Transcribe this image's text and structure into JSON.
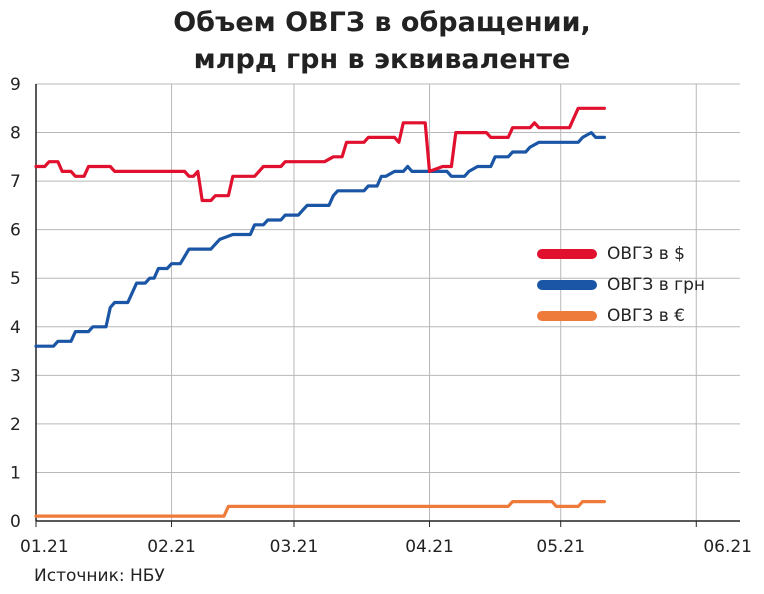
{
  "title_line1": "Объем ОВГЗ в обращении,",
  "title_line2": "млрд грн в эквиваленте",
  "source": "Источник: НБУ",
  "chart_data": {
    "type": "line",
    "ylim": [
      0,
      9
    ],
    "yticks": [
      "0",
      "1",
      "2",
      "3",
      "4",
      "5",
      "6",
      "7",
      "8",
      "9"
    ],
    "x_range": [
      "2021-01-01",
      "2021-06-11"
    ],
    "xticks": [
      {
        "label": "01.21",
        "date": "2021-01-01"
      },
      {
        "label": "02.21",
        "date": "2021-02-01"
      },
      {
        "label": "03.21",
        "date": "2021-03-01"
      },
      {
        "label": "04.21",
        "date": "2021-04-01"
      },
      {
        "label": "05.21",
        "date": "2021-05-01"
      },
      {
        "label": "06.21",
        "date": "2021-06-01"
      }
    ],
    "grid": true,
    "legend_position": "right",
    "series": [
      {
        "name": "ОВГЗ в $",
        "color": "#E0102E",
        "points": [
          [
            "2021-01-01",
            7.3
          ],
          [
            "2021-01-03",
            7.3
          ],
          [
            "2021-01-04",
            7.4
          ],
          [
            "2021-01-06",
            7.4
          ],
          [
            "2021-01-07",
            7.2
          ],
          [
            "2021-01-09",
            7.2
          ],
          [
            "2021-01-10",
            7.1
          ],
          [
            "2021-01-12",
            7.1
          ],
          [
            "2021-01-13",
            7.3
          ],
          [
            "2021-01-18",
            7.3
          ],
          [
            "2021-01-19",
            7.2
          ],
          [
            "2021-02-04",
            7.2
          ],
          [
            "2021-02-05",
            7.1
          ],
          [
            "2021-02-06",
            7.1
          ],
          [
            "2021-02-07",
            7.2
          ],
          [
            "2021-02-08",
            6.6
          ],
          [
            "2021-02-10",
            6.6
          ],
          [
            "2021-02-11",
            6.7
          ],
          [
            "2021-02-14",
            6.7
          ],
          [
            "2021-02-15",
            7.1
          ],
          [
            "2021-02-20",
            7.1
          ],
          [
            "2021-02-22",
            7.3
          ],
          [
            "2021-02-26",
            7.3
          ],
          [
            "2021-02-27",
            7.4
          ],
          [
            "2021-03-08",
            7.4
          ],
          [
            "2021-03-10",
            7.5
          ],
          [
            "2021-03-12",
            7.5
          ],
          [
            "2021-03-13",
            7.8
          ],
          [
            "2021-03-17",
            7.8
          ],
          [
            "2021-03-18",
            7.9
          ],
          [
            "2021-03-24",
            7.9
          ],
          [
            "2021-03-25",
            7.8
          ],
          [
            "2021-03-26",
            8.2
          ],
          [
            "2021-03-31",
            8.2
          ],
          [
            "2021-04-01",
            7.2
          ],
          [
            "2021-04-04",
            7.3
          ],
          [
            "2021-04-06",
            7.3
          ],
          [
            "2021-04-07",
            8.0
          ],
          [
            "2021-04-14",
            8.0
          ],
          [
            "2021-04-15",
            7.9
          ],
          [
            "2021-04-19",
            7.9
          ],
          [
            "2021-04-20",
            8.1
          ],
          [
            "2021-04-24",
            8.1
          ],
          [
            "2021-04-25",
            8.2
          ],
          [
            "2021-04-26",
            8.1
          ],
          [
            "2021-05-03",
            8.1
          ],
          [
            "2021-05-04",
            8.3
          ],
          [
            "2021-05-05",
            8.5
          ],
          [
            "2021-05-11",
            8.5
          ]
        ]
      },
      {
        "name": "ОВГЗ в грн",
        "color": "#1A56A5",
        "points": [
          [
            "2021-01-01",
            3.6
          ],
          [
            "2021-01-05",
            3.6
          ],
          [
            "2021-01-06",
            3.7
          ],
          [
            "2021-01-09",
            3.7
          ],
          [
            "2021-01-10",
            3.9
          ],
          [
            "2021-01-13",
            3.9
          ],
          [
            "2021-01-14",
            4.0
          ],
          [
            "2021-01-17",
            4.0
          ],
          [
            "2021-01-18",
            4.4
          ],
          [
            "2021-01-19",
            4.5
          ],
          [
            "2021-01-22",
            4.5
          ],
          [
            "2021-01-23",
            4.7
          ],
          [
            "2021-01-24",
            4.9
          ],
          [
            "2021-01-26",
            4.9
          ],
          [
            "2021-01-27",
            5.0
          ],
          [
            "2021-01-28",
            5.0
          ],
          [
            "2021-01-29",
            5.2
          ],
          [
            "2021-01-31",
            5.2
          ],
          [
            "2021-02-01",
            5.3
          ],
          [
            "2021-02-03",
            5.3
          ],
          [
            "2021-02-05",
            5.6
          ],
          [
            "2021-02-10",
            5.6
          ],
          [
            "2021-02-11",
            5.7
          ],
          [
            "2021-02-12",
            5.8
          ],
          [
            "2021-02-15",
            5.9
          ],
          [
            "2021-02-19",
            5.9
          ],
          [
            "2021-02-20",
            6.1
          ],
          [
            "2021-02-22",
            6.1
          ],
          [
            "2021-02-23",
            6.2
          ],
          [
            "2021-02-26",
            6.2
          ],
          [
            "2021-02-27",
            6.3
          ],
          [
            "2021-03-02",
            6.3
          ],
          [
            "2021-03-03",
            6.4
          ],
          [
            "2021-03-04",
            6.5
          ],
          [
            "2021-03-09",
            6.5
          ],
          [
            "2021-03-10",
            6.7
          ],
          [
            "2021-03-11",
            6.8
          ],
          [
            "2021-03-17",
            6.8
          ],
          [
            "2021-03-18",
            6.9
          ],
          [
            "2021-03-20",
            6.9
          ],
          [
            "2021-03-21",
            7.1
          ],
          [
            "2021-03-22",
            7.1
          ],
          [
            "2021-03-24",
            7.2
          ],
          [
            "2021-03-26",
            7.2
          ],
          [
            "2021-03-27",
            7.3
          ],
          [
            "2021-03-28",
            7.2
          ],
          [
            "2021-04-05",
            7.2
          ],
          [
            "2021-04-06",
            7.1
          ],
          [
            "2021-04-09",
            7.1
          ],
          [
            "2021-04-10",
            7.2
          ],
          [
            "2021-04-12",
            7.3
          ],
          [
            "2021-04-15",
            7.3
          ],
          [
            "2021-04-16",
            7.5
          ],
          [
            "2021-04-19",
            7.5
          ],
          [
            "2021-04-20",
            7.6
          ],
          [
            "2021-04-23",
            7.6
          ],
          [
            "2021-04-24",
            7.7
          ],
          [
            "2021-04-26",
            7.8
          ],
          [
            "2021-05-05",
            7.8
          ],
          [
            "2021-05-06",
            7.9
          ],
          [
            "2021-05-08",
            8.0
          ],
          [
            "2021-05-09",
            7.9
          ],
          [
            "2021-05-11",
            7.9
          ]
        ]
      },
      {
        "name": "ОВГЗ в €",
        "color": "#EE7B3A",
        "points": [
          [
            "2021-01-01",
            0.1
          ],
          [
            "2021-02-13",
            0.1
          ],
          [
            "2021-02-14",
            0.3
          ],
          [
            "2021-04-19",
            0.3
          ],
          [
            "2021-04-20",
            0.4
          ],
          [
            "2021-04-29",
            0.4
          ],
          [
            "2021-04-30",
            0.3
          ],
          [
            "2021-05-05",
            0.3
          ],
          [
            "2021-05-06",
            0.4
          ],
          [
            "2021-05-11",
            0.4
          ]
        ]
      }
    ]
  }
}
